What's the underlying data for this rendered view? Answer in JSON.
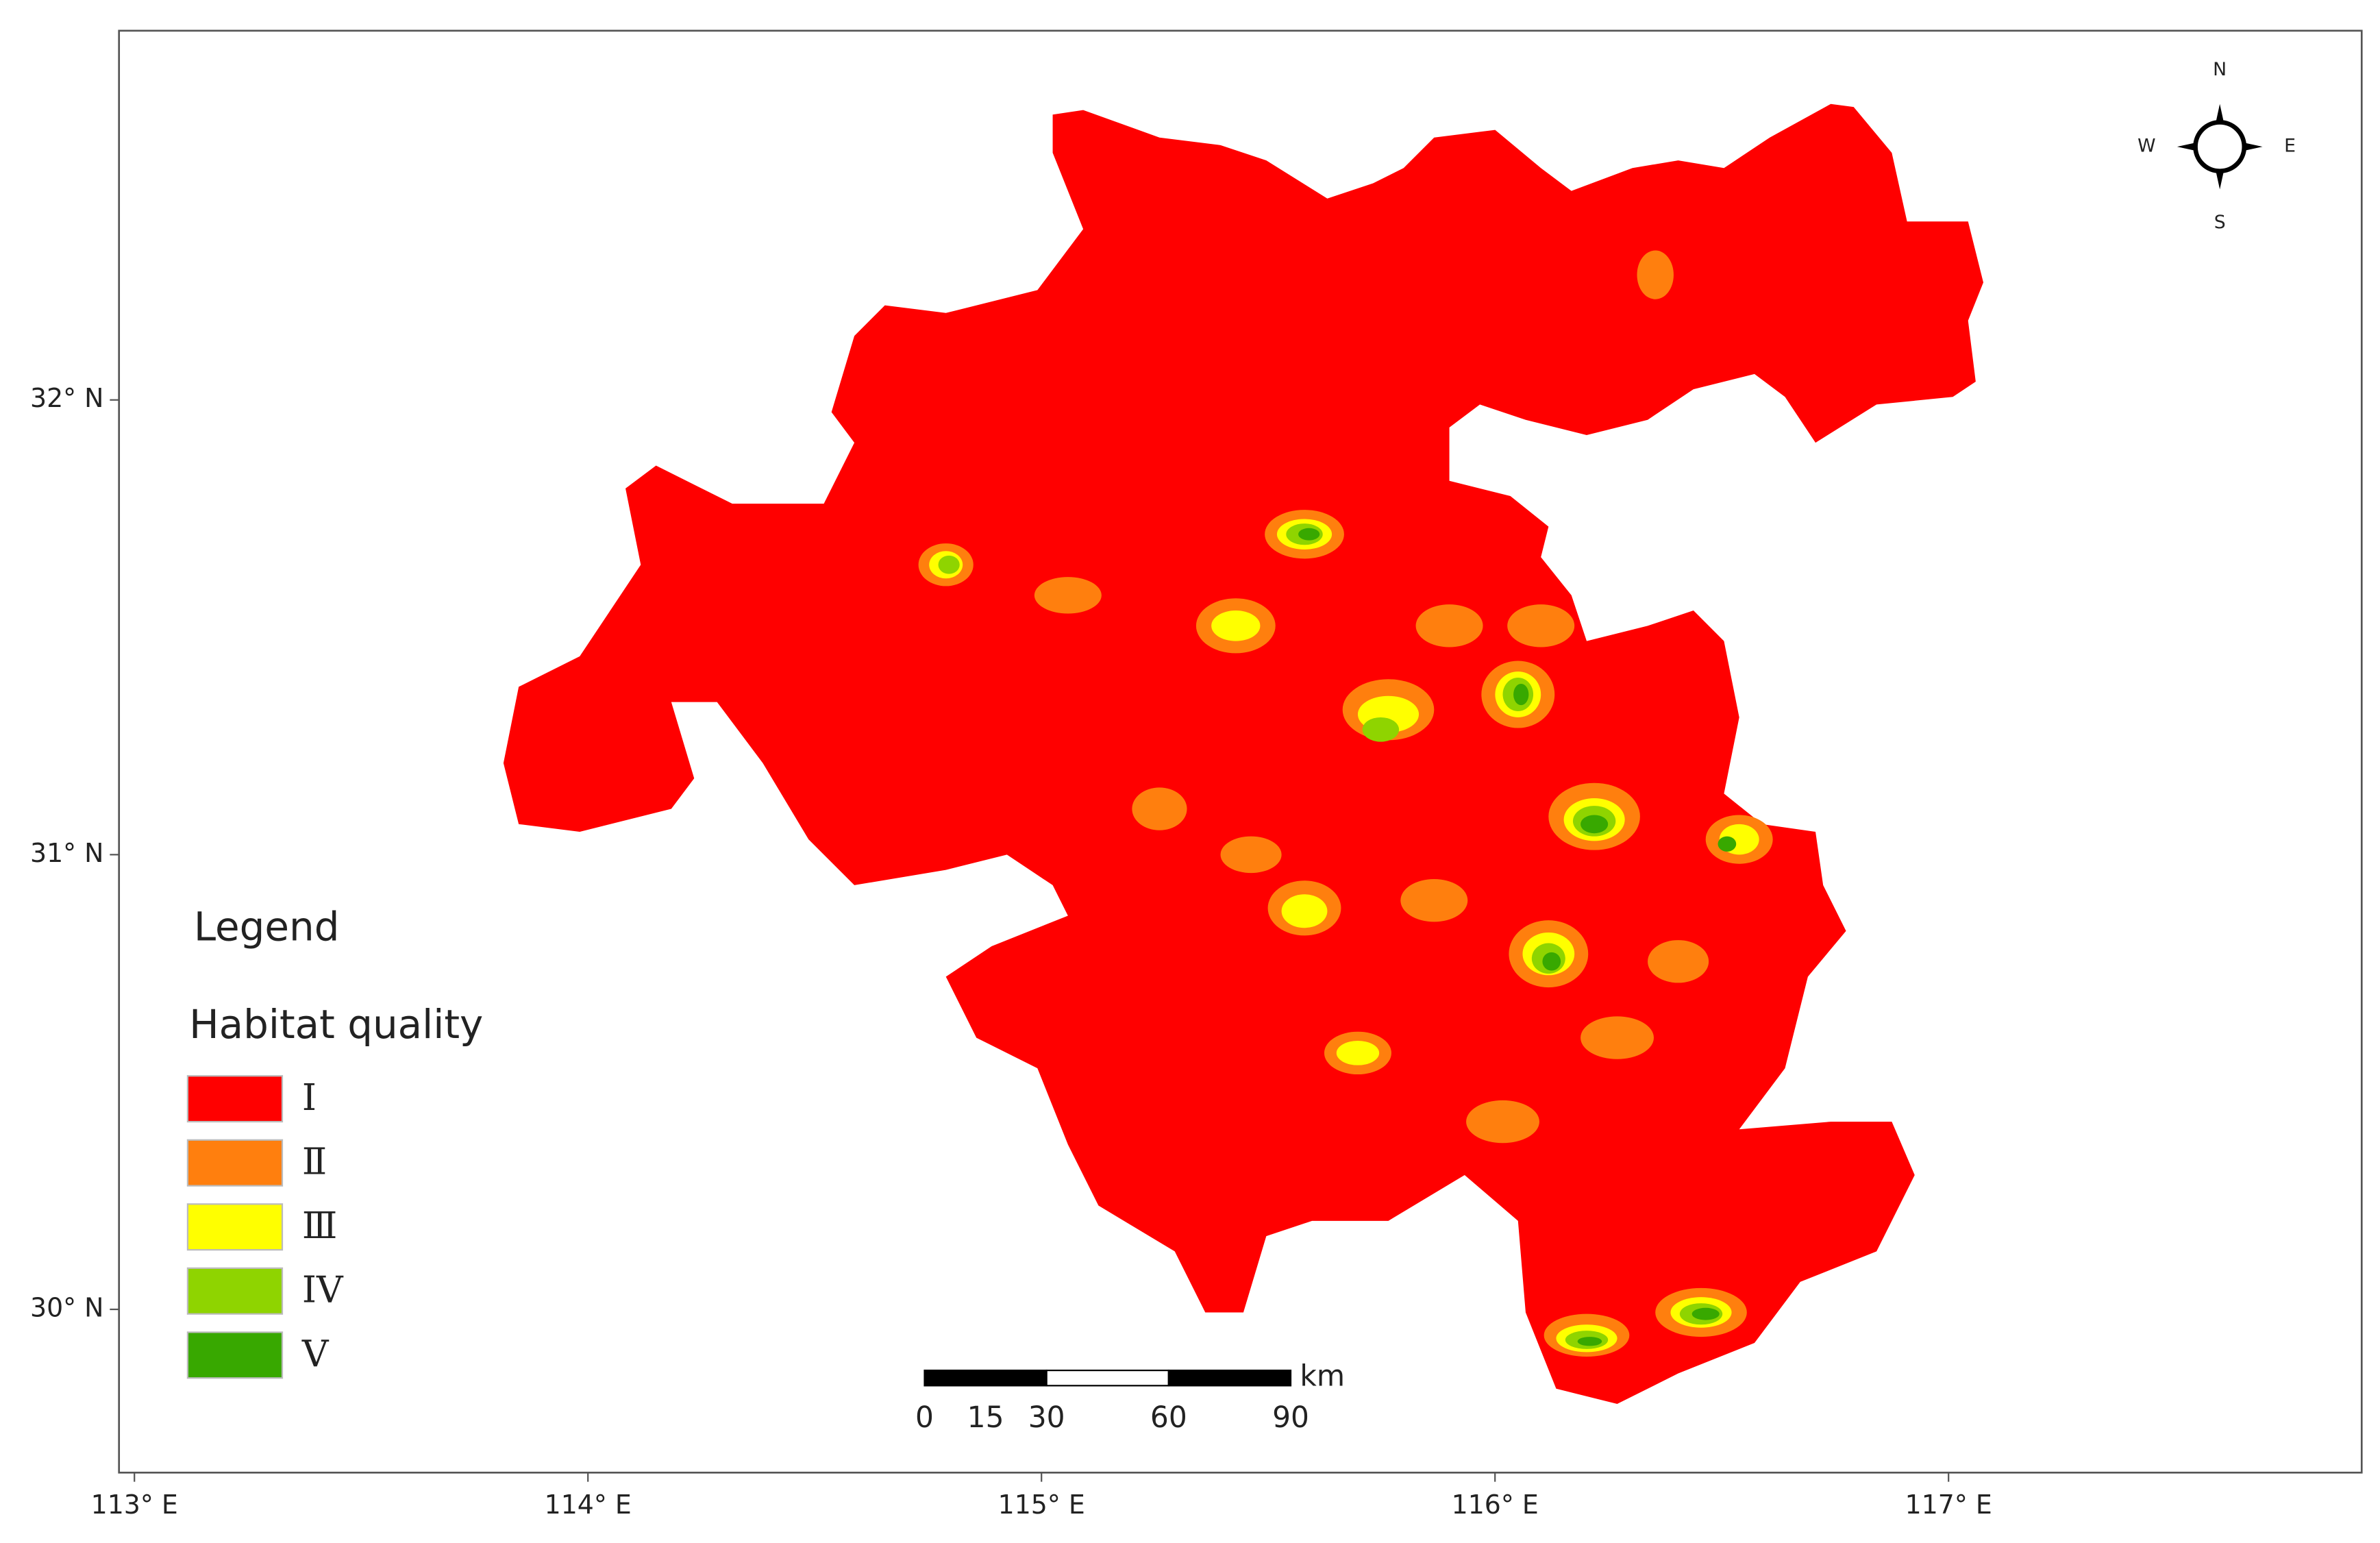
{
  "map": {
    "axes": {
      "xlim": [
        112.966,
        117.911
      ],
      "ylim": [
        29.641,
        32.812
      ],
      "x_ticks": [
        {
          "value": 113,
          "label": "113° E"
        },
        {
          "value": 114,
          "label": "114° E"
        },
        {
          "value": 115,
          "label": "115° E"
        },
        {
          "value": 116,
          "label": "116° E"
        },
        {
          "value": 117,
          "label": "117° E"
        }
      ],
      "y_ticks": [
        {
          "value": 32,
          "label": "32° N"
        },
        {
          "value": 31,
          "label": "31° N"
        },
        {
          "value": 30,
          "label": "30° N"
        }
      ]
    },
    "legend": {
      "title": "Legend",
      "subtitle": "Habitat quality",
      "classes": [
        {
          "label": "Ⅰ",
          "color": "#ff0000"
        },
        {
          "label": "Ⅱ",
          "color": "#ff7f0e"
        },
        {
          "label": "Ⅲ",
          "color": "#ffff00"
        },
        {
          "label": "IV",
          "color": "#8fd400"
        },
        {
          "label": "V",
          "color": "#38a800"
        }
      ]
    },
    "compass": {
      "n": "N",
      "s": "S",
      "e": "E",
      "w": "W"
    },
    "scale_bar": {
      "unit": "km",
      "ticks": [
        0,
        15,
        30,
        60,
        90
      ]
    }
  }
}
